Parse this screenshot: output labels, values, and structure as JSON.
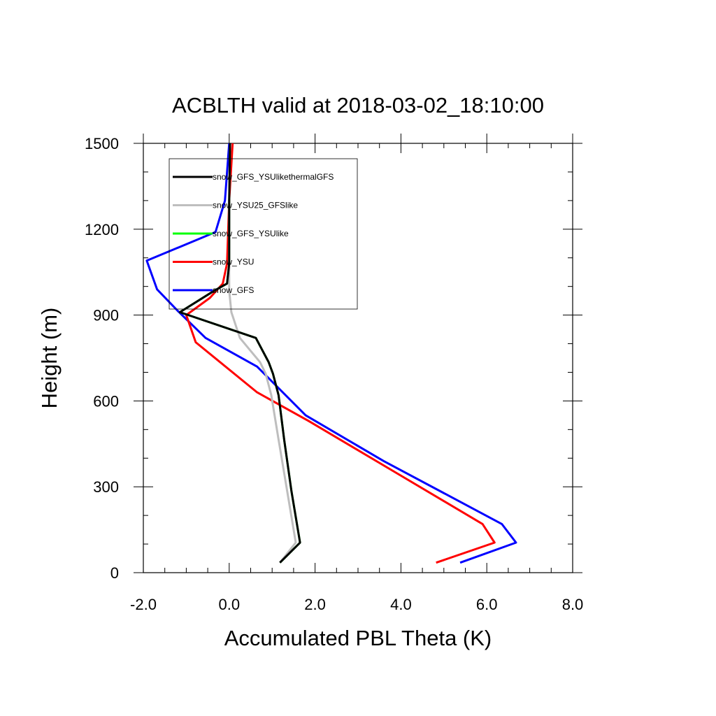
{
  "chart_data": {
    "type": "line",
    "title": "ACBLTH valid at 2018-03-02_18:10:00",
    "xlabel": "Accumulated PBL Theta (K)",
    "ylabel": "Height (m)",
    "xlim": [
      -2.0,
      8.0
    ],
    "ylim": [
      0,
      1500
    ],
    "xticks": [
      "-2.0",
      "0.0",
      "2.0",
      "4.0",
      "6.0",
      "8.0"
    ],
    "yticks": [
      "0",
      "300",
      "600",
      "900",
      "1200",
      "1500"
    ],
    "legend_position": "top-left",
    "series": [
      {
        "name": "snow_GFS_YSUlikethermalGFS",
        "color": "#000000",
        "points": [
          [
            1.18,
            35
          ],
          [
            1.65,
            105
          ],
          [
            1.45,
            285
          ],
          [
            1.28,
            465
          ],
          [
            1.15,
            620
          ],
          [
            1.02,
            695
          ],
          [
            0.92,
            735
          ],
          [
            0.62,
            820
          ],
          [
            -1.15,
            910
          ],
          [
            -0.35,
            985
          ],
          [
            -0.05,
            1010
          ],
          [
            0.0,
            1080
          ],
          [
            0.0,
            1300
          ],
          [
            0.02,
            1500
          ]
        ]
      },
      {
        "name": "snow_YSU25_GFSlike",
        "color": "#bebebe",
        "points": [
          [
            1.18,
            35
          ],
          [
            1.55,
            105
          ],
          [
            1.35,
            285
          ],
          [
            1.15,
            465
          ],
          [
            0.98,
            620
          ],
          [
            0.85,
            695
          ],
          [
            0.72,
            735
          ],
          [
            0.25,
            820
          ],
          [
            0.05,
            910
          ],
          [
            0.0,
            985
          ],
          [
            0.0,
            1080
          ],
          [
            0.0,
            1300
          ],
          [
            0.02,
            1500
          ]
        ]
      },
      {
        "name": "snow_GFS_YSUlike",
        "color": "#00ff00",
        "points": [
          [
            1.18,
            35
          ],
          [
            1.65,
            105
          ],
          [
            1.45,
            285
          ],
          [
            1.28,
            465
          ],
          [
            1.15,
            620
          ],
          [
            1.02,
            695
          ],
          [
            0.92,
            735
          ],
          [
            0.62,
            820
          ],
          [
            -1.15,
            910
          ],
          [
            -0.35,
            985
          ],
          [
            -0.05,
            1010
          ],
          [
            0.0,
            1080
          ],
          [
            0.0,
            1300
          ],
          [
            0.02,
            1500
          ]
        ]
      },
      {
        "name": "snow_YSU",
        "color": "#ff0000",
        "points": [
          [
            4.82,
            35
          ],
          [
            6.18,
            105
          ],
          [
            5.9,
            170
          ],
          [
            3.65,
            370
          ],
          [
            1.85,
            530
          ],
          [
            0.65,
            630
          ],
          [
            -0.78,
            805
          ],
          [
            -1.0,
            900
          ],
          [
            -0.45,
            960
          ],
          [
            -0.15,
            1010
          ],
          [
            -0.05,
            1080
          ],
          [
            0.0,
            1300
          ],
          [
            0.08,
            1500
          ]
        ]
      },
      {
        "name": "snow_GFS",
        "color": "#0000ff",
        "points": [
          [
            5.38,
            35
          ],
          [
            6.68,
            105
          ],
          [
            6.35,
            170
          ],
          [
            3.6,
            390
          ],
          [
            1.78,
            550
          ],
          [
            0.65,
            720
          ],
          [
            -0.55,
            820
          ],
          [
            -1.2,
            915
          ],
          [
            -1.68,
            990
          ],
          [
            -1.92,
            1090
          ],
          [
            -0.32,
            1190
          ],
          [
            -0.1,
            1300
          ],
          [
            0.0,
            1500
          ]
        ]
      }
    ]
  }
}
